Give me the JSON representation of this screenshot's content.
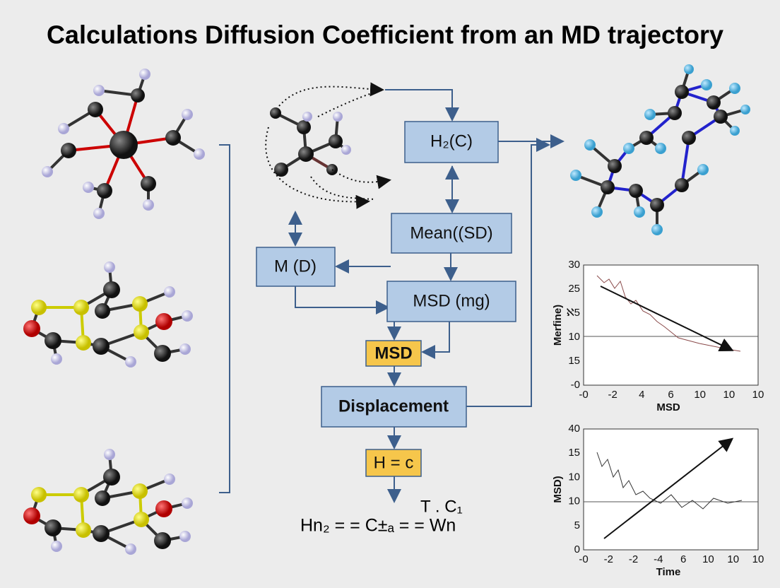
{
  "title": "Calculations Diffusion Coefficient from an MD trajectory",
  "nodes": [
    {
      "label": "H₂(C)"
    },
    {
      "label": "Mean((SD)"
    },
    {
      "label": "M (D)"
    },
    {
      "label": "MSD (mg)"
    },
    {
      "label": "MSD"
    },
    {
      "label": "Displacement"
    },
    {
      "label": "H = c"
    }
  ],
  "formula": {
    "main": "Hn₂ = = C±ₐ = = Wn",
    "upper": "T . C₁"
  },
  "plots": [
    {
      "y_label": "Merfine)",
      "x_label": "MSD",
      "y_ticks": [
        "30",
        "25",
        "ℵ5",
        "10",
        "15",
        "-0"
      ],
      "x_ticks": [
        "-0",
        "-2",
        "4",
        "6",
        "10",
        "10",
        "10"
      ]
    },
    {
      "y_label": "MSD)",
      "x_label": "Time",
      "y_ticks": [
        "40",
        "15",
        "10",
        "10",
        "5",
        "0"
      ],
      "x_ticks": [
        "-0",
        "-2",
        "-2",
        "-4",
        "6",
        "10",
        "10",
        "10"
      ]
    }
  ]
}
